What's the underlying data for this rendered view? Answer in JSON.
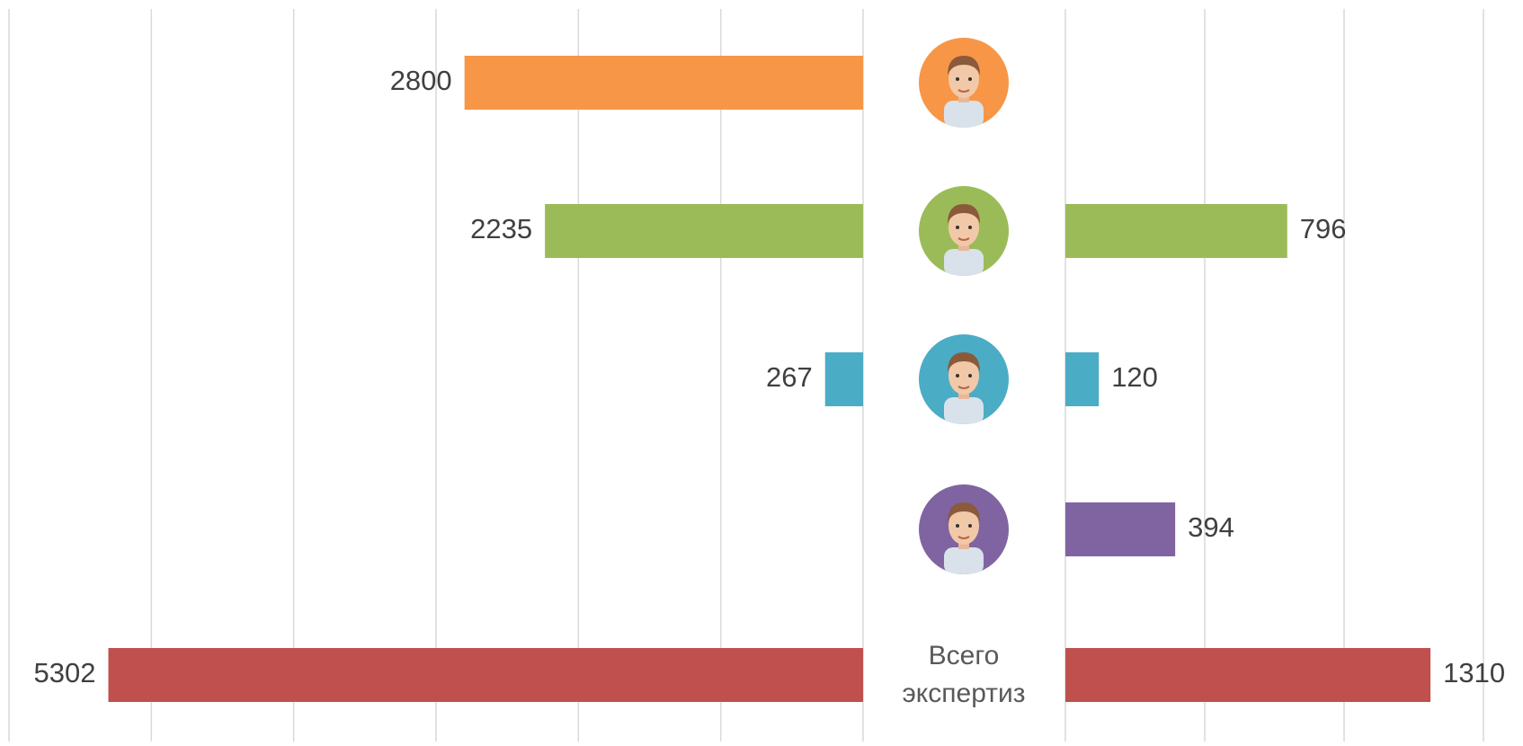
{
  "chart_data": {
    "type": "butterfly-bar",
    "categories": [
      null,
      null,
      null,
      null,
      "Всего экспертиз"
    ],
    "colors": [
      "#f79646",
      "#9bbb59",
      "#4bacc6",
      "#8064a2",
      "#c0504d"
    ],
    "series": [
      {
        "values": [
          2800,
          2235,
          267,
          null,
          5302
        ],
        "xlim": [
          0,
          6000
        ],
        "xticks": [
          0,
          1000,
          2000,
          3000,
          4000,
          5000,
          6000
        ]
      },
      {
        "values": [
          null,
          796,
          120,
          394,
          1310
        ],
        "xlim": [
          0,
          1500
        ],
        "xticks": [
          0,
          500,
          1000,
          1500
        ]
      }
    ],
    "grid": true
  }
}
